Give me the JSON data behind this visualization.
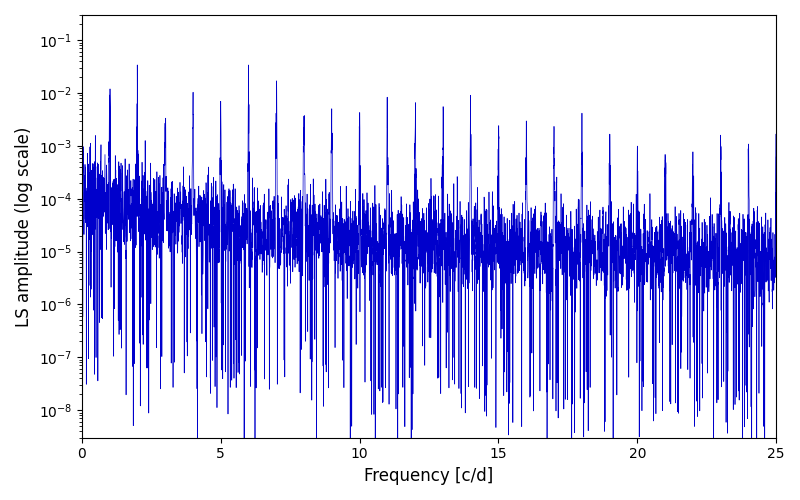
{
  "title": "",
  "xlabel": "Frequency [c/d]",
  "ylabel": "LS amplitude (log scale)",
  "xlim": [
    0,
    25
  ],
  "ylim": [
    3e-09,
    0.3
  ],
  "line_color": "#0000cc",
  "line_width": 0.5,
  "background_color": "#ffffff",
  "figsize": [
    8.0,
    5.0
  ],
  "dpi": 100,
  "xticks": [
    0,
    5,
    10,
    15,
    20,
    25
  ],
  "seed": 12345,
  "n_points": 8000,
  "freq_max": 25.0,
  "base_amplitude": 0.0002,
  "decay_alpha": 1.0,
  "n_harmonics": 25,
  "harmonic_base": 1.0
}
